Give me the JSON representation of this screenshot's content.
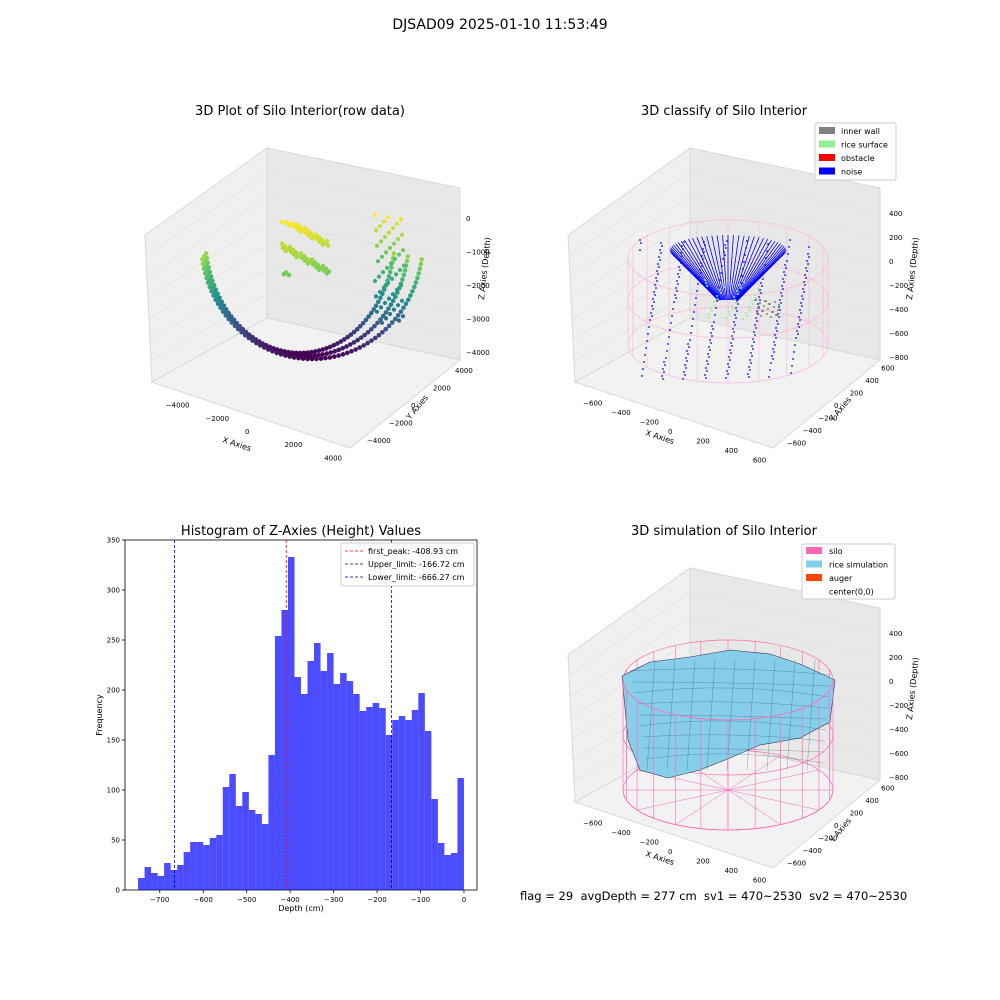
{
  "suptitle": "DJSAD09 2025-01-10 11:53:49",
  "panels": {
    "raw": {
      "title": "3D Plot of Silo Interior(row data)",
      "xlabel": "X Axies",
      "ylabel": "Y Axies",
      "zlabel": "Z Axies (Depth)",
      "xticks": [
        "−4000",
        "−2000",
        "0",
        "2000",
        "4000"
      ],
      "yticks": [
        "−4000",
        "−2000",
        "0",
        "2000",
        "4000"
      ],
      "zticks": [
        "0",
        "−1000",
        "−2000",
        "−3000",
        "−4000"
      ],
      "colormap": "viridis"
    },
    "classify": {
      "title": "3D classify of Silo Interior",
      "xlabel": "X Axies",
      "ylabel": "Y Axies",
      "zlabel": "Z Axies (Depth)",
      "xticks": [
        "−600",
        "−400",
        "−200",
        "0",
        "200",
        "400",
        "600"
      ],
      "yticks": [
        "−600",
        "−400",
        "−200",
        "0",
        "200",
        "400",
        "600"
      ],
      "zticks": [
        "400",
        "200",
        "0",
        "−200",
        "−400",
        "−600",
        "−800"
      ],
      "legend": [
        {
          "label": "inner wall",
          "color": "#808080"
        },
        {
          "label": "rice surface",
          "color": "#90ee90"
        },
        {
          "label": "obstacle",
          "color": "#ff0000"
        },
        {
          "label": "noise",
          "color": "#0000ff"
        }
      ],
      "cylinder_color": "#ffb6d9"
    },
    "simulation": {
      "title": "3D simulation of Silo Interior",
      "xlabel": "X Axies",
      "ylabel": "Y Axies",
      "zlabel": "Z Axies (Depth)",
      "xticks": [
        "−600",
        "−400",
        "−200",
        "0",
        "200",
        "400",
        "600"
      ],
      "yticks": [
        "−600",
        "−400",
        "−200",
        "0",
        "200",
        "400",
        "600"
      ],
      "zticks": [
        "400",
        "200",
        "0",
        "−200",
        "−400",
        "−600",
        "−800"
      ],
      "legend": [
        {
          "label": "silo",
          "color": "#ff69b4"
        },
        {
          "label": "rice simulation",
          "color": "#87ceeb"
        },
        {
          "label": "auger",
          "color": "#ff4500"
        },
        {
          "label": "center(0,0)",
          "color": "#ffffff"
        }
      ]
    }
  },
  "footer": "flag = 29  avgDepth = 277 cm  sv1 = 470~2530  sv2 = 470~2530",
  "chart_data": {
    "type": "bar",
    "title": "Histogram of Z-Axies (Height) Values",
    "xlabel": "Depth (cm)",
    "ylabel": "Frequency",
    "xlim": [
      -780,
      30
    ],
    "ylim": [
      0,
      350
    ],
    "xticks": [
      -700,
      -600,
      -500,
      -400,
      -300,
      -200,
      -100,
      0
    ],
    "yticks": [
      0,
      50,
      100,
      150,
      200,
      250,
      300,
      350
    ],
    "bin_start": -750,
    "bin_width": 15,
    "values": [
      12,
      23,
      17,
      14,
      27,
      20,
      25,
      38,
      48,
      48,
      45,
      52,
      55,
      103,
      116,
      84,
      98,
      80,
      76,
      66,
      135,
      254,
      280,
      333,
      213,
      196,
      229,
      247,
      219,
      237,
      206,
      217,
      209,
      196,
      179,
      183,
      187,
      182,
      155,
      170,
      174,
      170,
      180,
      197,
      159,
      91,
      47,
      35,
      37,
      112
    ],
    "bar_color": "#0000ff",
    "vlines": [
      {
        "label": "first_peak: -408.93 cm",
        "x": -408.93,
        "color": "#ff0000"
      },
      {
        "label": "Upper_limit: -166.72 cm",
        "x": -166.72,
        "color": "#0000aa"
      },
      {
        "label": "Lower_limit: -666.27 cm",
        "x": -666.27,
        "color": "#0000aa"
      }
    ],
    "legend_position": "top-right"
  }
}
